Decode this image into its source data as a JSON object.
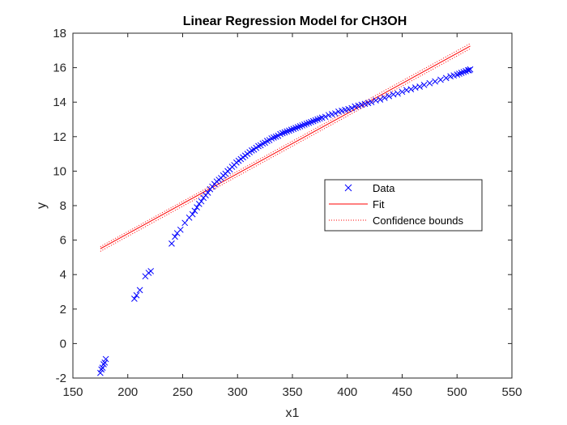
{
  "chart_data": {
    "type": "scatter",
    "title": "Linear Regression Model for CH3OH",
    "xlabel": "x1",
    "ylabel": "y",
    "xlim": [
      150,
      550
    ],
    "ylim": [
      -2,
      18
    ],
    "xticks": [
      150,
      200,
      250,
      300,
      350,
      400,
      450,
      500,
      550
    ],
    "yticks": [
      -2,
      0,
      2,
      4,
      6,
      8,
      10,
      12,
      14,
      16,
      18
    ],
    "grid": false,
    "legend_position": "right",
    "series": [
      {
        "name": "Data",
        "style": "x-marker",
        "color": "#0000ff",
        "x": [
          175,
          176,
          177,
          178,
          179,
          180,
          206,
          208,
          211,
          216,
          219,
          221,
          240,
          243,
          245,
          248,
          252,
          256,
          259,
          261,
          263,
          265,
          267,
          269,
          271,
          273,
          275,
          277,
          279,
          281,
          283,
          285,
          287,
          289,
          291,
          293,
          295,
          297,
          299,
          301,
          303,
          305,
          307,
          309,
          311,
          313,
          315,
          317,
          319,
          321,
          323,
          325,
          327,
          329,
          331,
          333,
          335,
          337,
          339,
          341,
          343,
          345,
          347,
          349,
          351,
          353,
          355,
          357,
          359,
          361,
          363,
          365,
          367,
          369,
          371,
          373,
          375,
          377,
          380,
          383,
          386,
          389,
          392,
          395,
          398,
          401,
          404,
          407,
          410,
          413,
          416,
          419,
          422,
          426,
          430,
          434,
          438,
          442,
          446,
          450,
          454,
          458,
          462,
          466,
          470,
          475,
          480,
          485,
          490,
          494,
          497,
          500,
          502,
          504,
          506,
          508,
          510,
          511,
          512
        ],
        "y": [
          -1.7,
          -1.5,
          -1.4,
          -1.2,
          -1.1,
          -0.9,
          2.6,
          2.8,
          3.1,
          3.9,
          4.1,
          4.2,
          5.8,
          6.2,
          6.4,
          6.6,
          7.0,
          7.3,
          7.5,
          7.7,
          7.9,
          8.1,
          8.25,
          8.45,
          8.6,
          8.75,
          8.95,
          9.1,
          9.25,
          9.4,
          9.5,
          9.6,
          9.75,
          9.85,
          10.0,
          10.1,
          10.25,
          10.35,
          10.5,
          10.6,
          10.7,
          10.8,
          10.9,
          11.0,
          11.1,
          11.2,
          11.25,
          11.35,
          11.45,
          11.5,
          11.6,
          11.65,
          11.75,
          11.8,
          11.9,
          11.95,
          12.0,
          12.05,
          12.15,
          12.2,
          12.25,
          12.3,
          12.35,
          12.4,
          12.45,
          12.5,
          12.55,
          12.6,
          12.65,
          12.7,
          12.75,
          12.8,
          12.85,
          12.9,
          12.95,
          13.0,
          13.05,
          13.1,
          13.15,
          13.25,
          13.3,
          13.35,
          13.45,
          13.5,
          13.55,
          13.6,
          13.65,
          13.75,
          13.8,
          13.85,
          13.9,
          13.95,
          14.0,
          14.1,
          14.15,
          14.25,
          14.35,
          14.45,
          14.5,
          14.6,
          14.7,
          14.75,
          14.85,
          14.9,
          15.0,
          15.1,
          15.2,
          15.3,
          15.4,
          15.5,
          15.55,
          15.6,
          15.65,
          15.7,
          15.75,
          15.8,
          15.85,
          15.85,
          15.9
        ]
      },
      {
        "name": "Fit",
        "style": "solid-line",
        "color": "#ff0000",
        "x": [
          175,
          512
        ],
        "y": [
          5.5,
          17.25
        ]
      },
      {
        "name": "Confidence bounds",
        "style": "dotted-line",
        "color": "#ff0000",
        "x": [
          175,
          512
        ],
        "upper": [
          5.62,
          17.4
        ],
        "lower": [
          5.35,
          17.1
        ]
      }
    ]
  }
}
